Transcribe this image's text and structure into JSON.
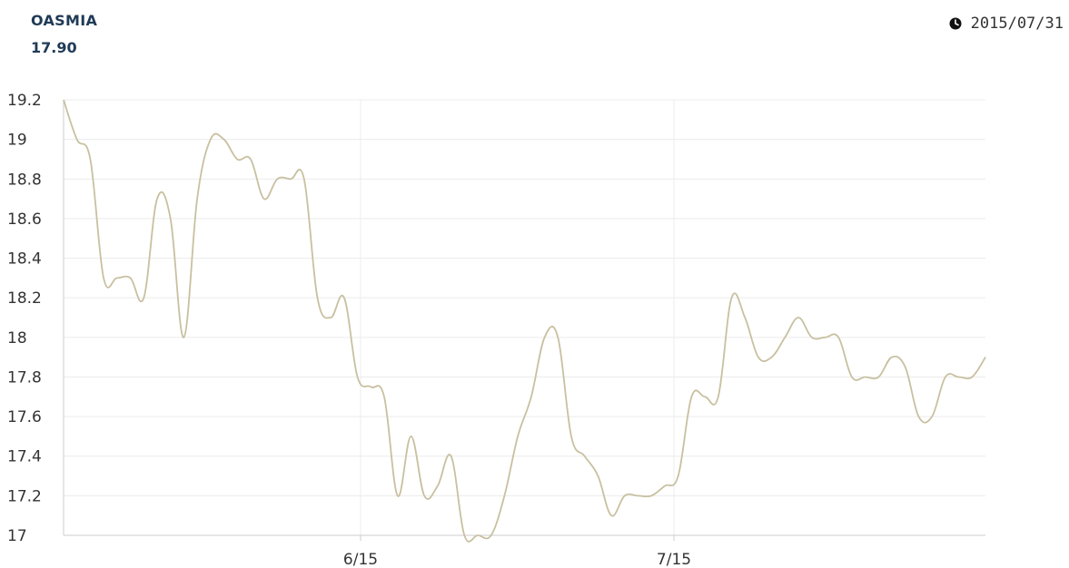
{
  "header": {
    "ticker": "OASMIA",
    "price": "17.90",
    "date": "2015/07/31",
    "clock_icon": "clock-icon"
  },
  "colors": {
    "line": "#c8c0a0",
    "grid": "#ececec",
    "axis": "#cccccc",
    "text": "#333333",
    "title": "#1f3b57"
  },
  "chart_data": {
    "type": "line",
    "title": "",
    "xlabel": "",
    "ylabel": "",
    "ylim": [
      17,
      19.2
    ],
    "yticks": [
      19.2,
      19,
      18.8,
      18.6,
      18.4,
      18.2,
      18,
      17.8,
      17.6,
      17.4,
      17.2,
      17
    ],
    "ytick_labels": [
      "19.2",
      "19",
      "18.8",
      "18.6",
      "18.4",
      "18.2",
      "18",
      "17.8",
      "17.6",
      "17.4",
      "17.2",
      "17"
    ],
    "xticks": [
      "6/15",
      "7/15"
    ],
    "grid": true,
    "legend": "none",
    "series": [
      {
        "values": [
          19.2,
          19.0,
          18.9,
          18.3,
          18.3,
          18.3,
          18.2,
          18.7,
          18.6,
          18.0,
          18.7,
          19.0,
          19.0,
          18.9,
          18.9,
          18.7,
          18.8,
          18.8,
          18.8,
          18.2,
          18.1,
          18.2,
          17.8,
          17.75,
          17.7,
          17.2,
          17.5,
          17.2,
          17.25,
          17.4,
          17.0,
          17.0,
          17.0,
          17.2,
          17.5,
          17.7,
          18.0,
          18.0,
          17.5,
          17.4,
          17.3,
          17.1,
          17.2,
          17.2,
          17.2,
          17.25,
          17.3,
          17.7,
          17.7,
          17.7,
          18.2,
          18.1,
          17.9,
          17.9,
          18.0,
          18.1,
          18.0,
          18.0,
          18.0,
          17.8,
          17.8,
          17.8,
          17.9,
          17.85,
          17.6,
          17.6,
          17.8,
          17.8,
          17.8,
          17.9
        ]
      }
    ]
  }
}
